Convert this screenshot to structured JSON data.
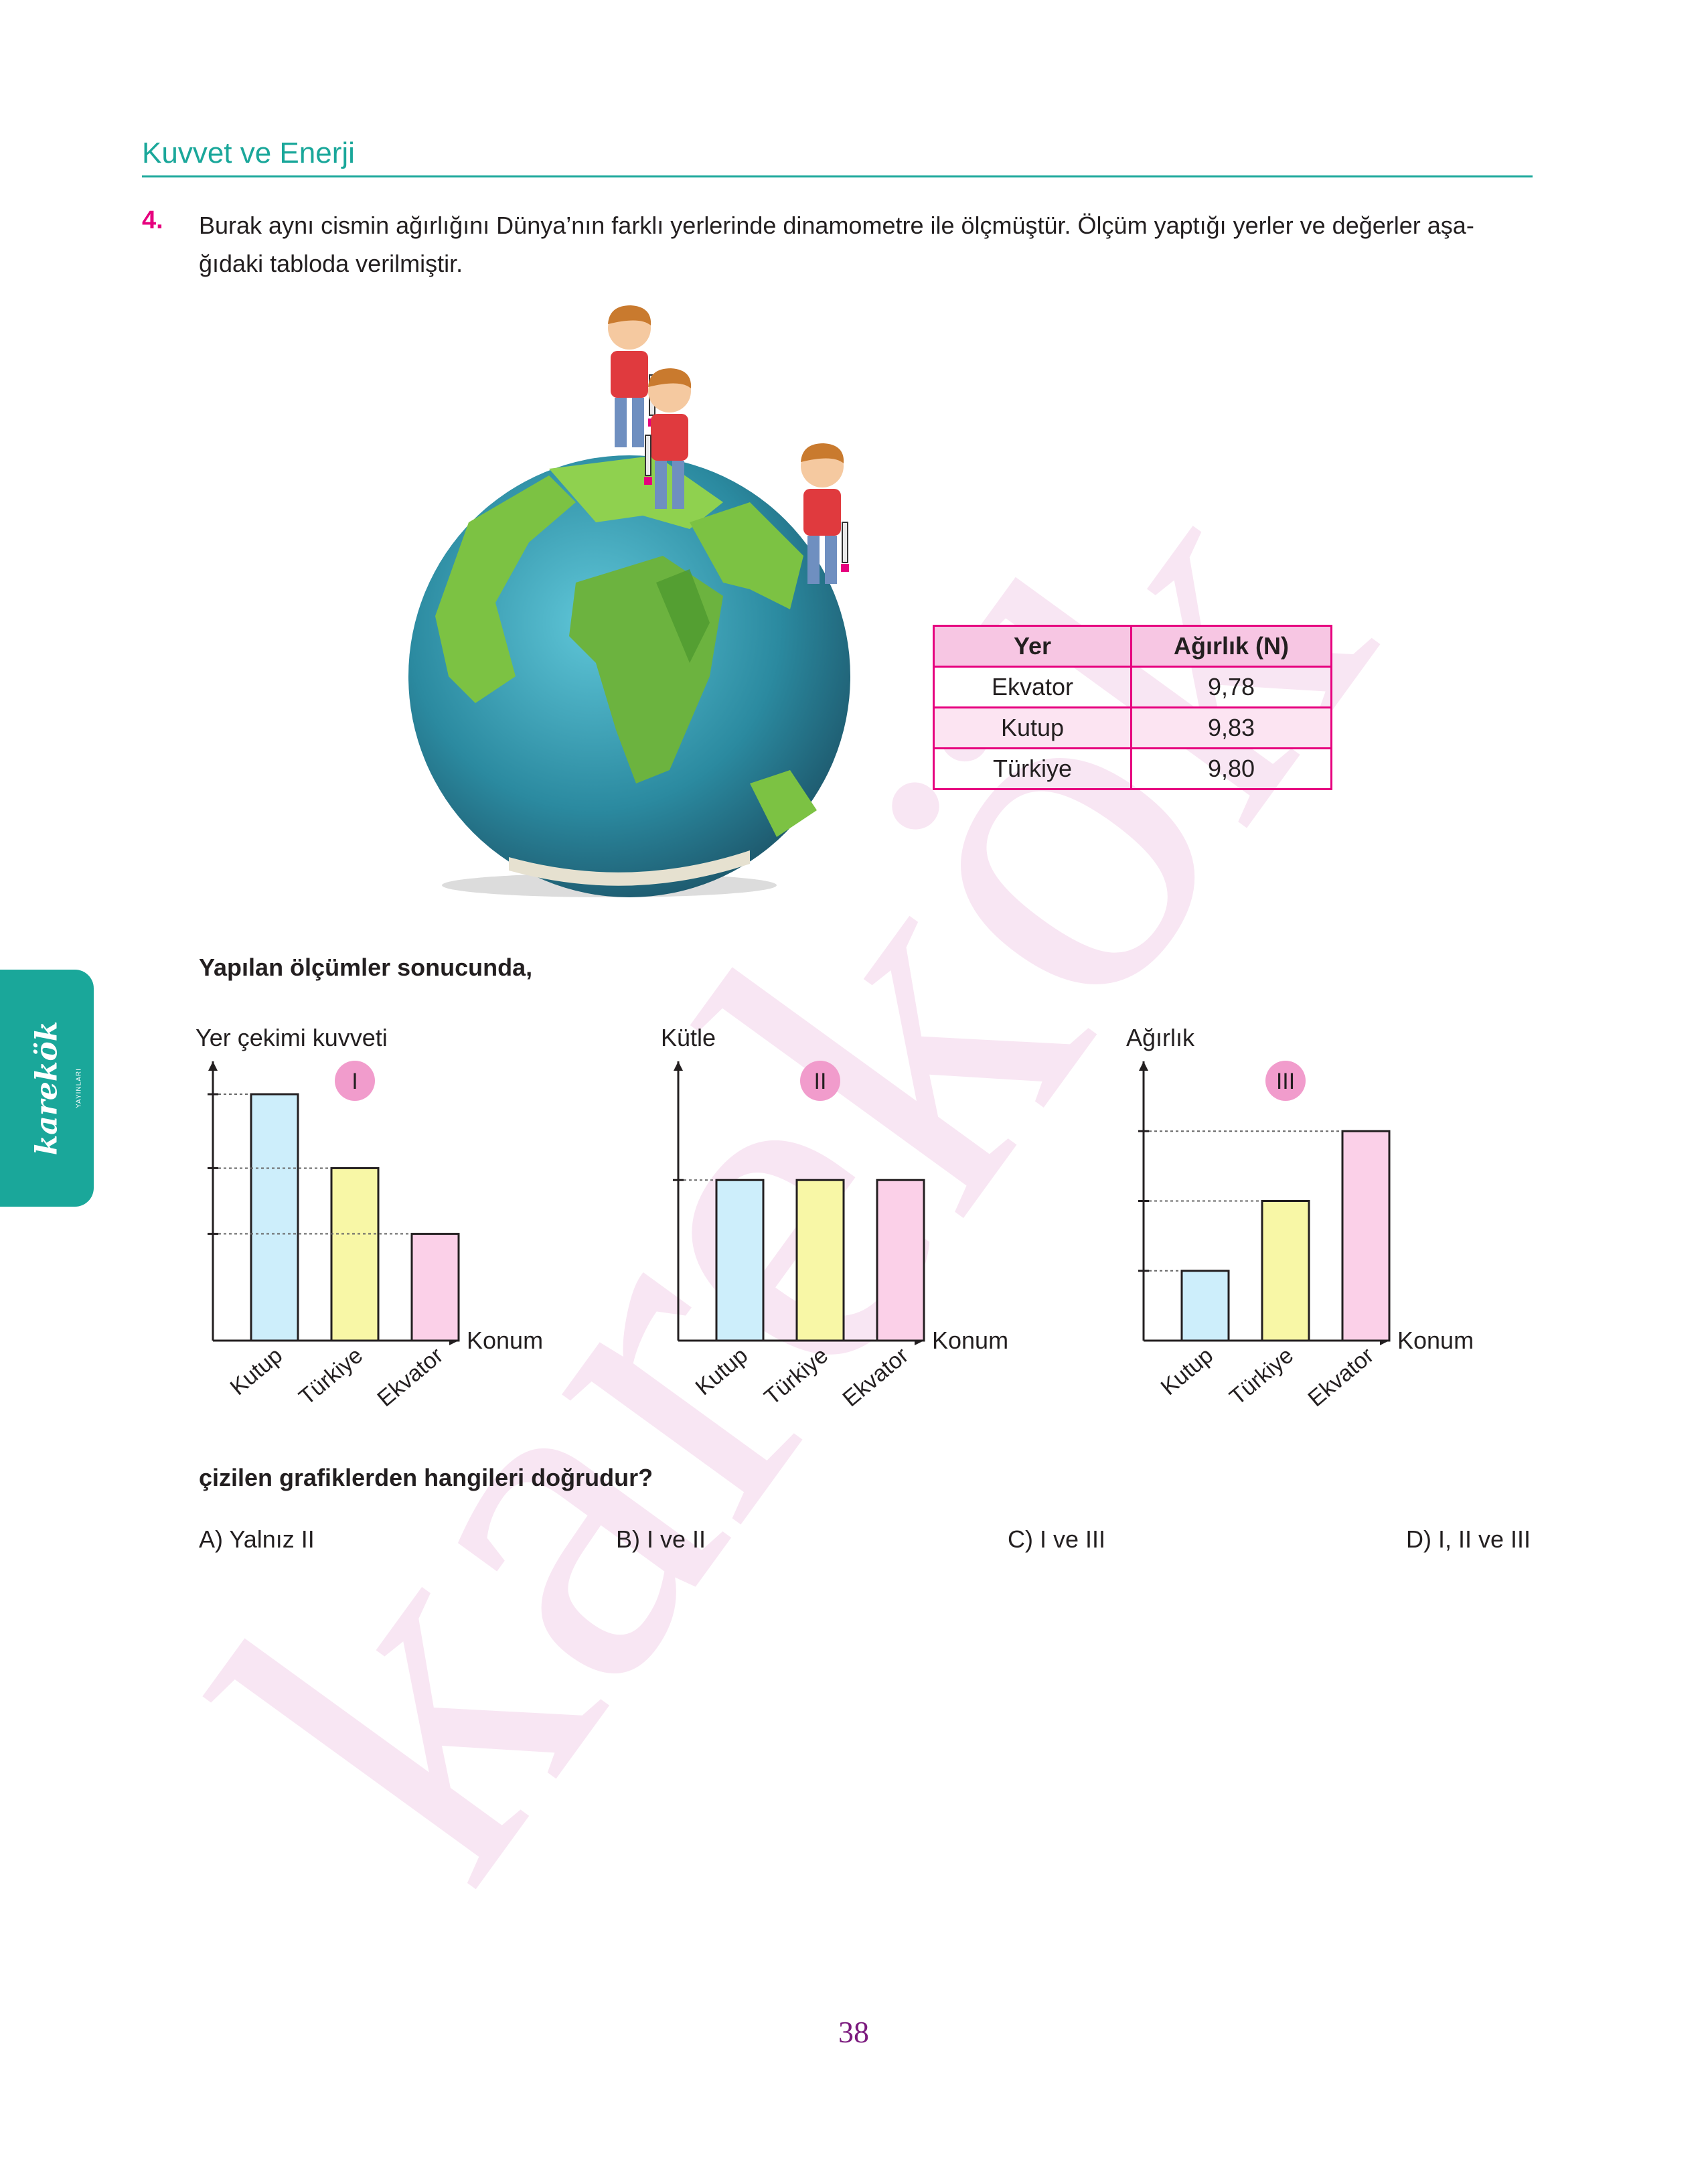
{
  "header": {
    "section_title": "Kuvvet ve Enerji"
  },
  "question": {
    "number": "4.",
    "lines": [
      "Burak aynı cismin ağırlığını Dünya’nın farklı yerlerinde dinamometre ile ölçmüştür. Ölçüm yaptığı yerler ve değerler aşa-",
      "ğıdaki tabloda verilmiştir."
    ],
    "lead": "Yapılan ölçümler sonucunda,",
    "ask": "çizilen grafiklerden hangileri doğrudur?"
  },
  "table": {
    "headers": [
      "Yer",
      "Ağırlık (N)"
    ],
    "rows": [
      [
        "Ekvator",
        "9,78"
      ],
      [
        "Kutup",
        "9,83"
      ],
      [
        "Türkiye",
        "9,80"
      ]
    ]
  },
  "chart_data": [
    {
      "type": "bar",
      "badge": "I",
      "ylabel": "Yer çekimi kuvveti",
      "xlabel": "Konum",
      "categories": [
        "Kutup",
        "Türkiye",
        "Ekvator"
      ],
      "values": [
        3,
        2.1,
        1.3
      ],
      "ylim": [
        0,
        3.4
      ],
      "colors": [
        "#cdeefb",
        "#f8f7a6",
        "#fbd0e8"
      ]
    },
    {
      "type": "bar",
      "badge": "II",
      "ylabel": "Kütle",
      "xlabel": "Konum",
      "categories": [
        "Kutup",
        "Türkiye",
        "Ekvator"
      ],
      "values": [
        2.3,
        2.3,
        2.3
      ],
      "ylim": [
        0,
        4
      ],
      "colors": [
        "#cdeefb",
        "#f8f7a6",
        "#fbd0e8"
      ]
    },
    {
      "type": "bar",
      "badge": "III",
      "ylabel": "Ağırlık",
      "xlabel": "Konum",
      "categories": [
        "Kutup",
        "Türkiye",
        "Ekvator"
      ],
      "values": [
        1,
        2,
        3
      ],
      "ylim": [
        0,
        4
      ],
      "colors": [
        "#cdeefb",
        "#f8f7a6",
        "#fbd0e8"
      ]
    }
  ],
  "options": [
    "A) Yalnız II",
    "B) I ve II",
    "C) I ve III",
    "D) I, II ve III"
  ],
  "sidebar": {
    "brand": "karekök",
    "sub": "YAYINLARI"
  },
  "watermark": "karekök",
  "page_number": "38",
  "colors": {
    "accent": "#1aa79a",
    "magenta": "#e6007e",
    "badge": "#f19ccc"
  }
}
